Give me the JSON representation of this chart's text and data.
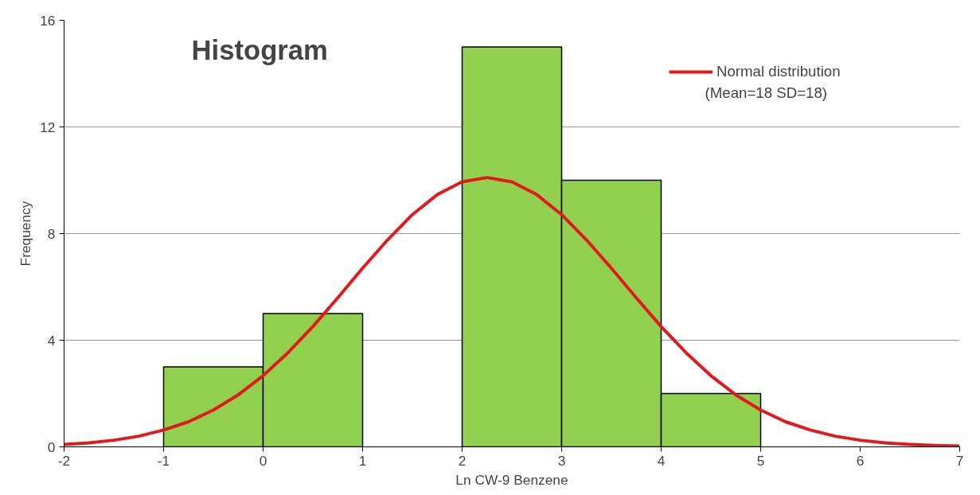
{
  "chart_data": {
    "type": "histogram",
    "title": "Histogram",
    "xlabel": "Ln CW-9 Benzene",
    "ylabel": "Frequency",
    "bins": [
      -1,
      0,
      1,
      2,
      3,
      4,
      5
    ],
    "values": [
      3,
      5,
      0,
      15,
      10,
      2
    ],
    "color": "#92d050",
    "series": [
      {
        "type": "line",
        "name": "Normal distribution",
        "color": "#e31a1c",
        "x": [
          -2,
          -1.75,
          -1.5,
          -1.25,
          -1,
          -0.75,
          -0.5,
          -0.25,
          0,
          0.25,
          0.5,
          0.75,
          1,
          1.25,
          1.5,
          1.75,
          2,
          2.25,
          2.5,
          2.75,
          3,
          3.25,
          3.5,
          3.75,
          4,
          4.25,
          4.5,
          4.75,
          5,
          5.25,
          5.5,
          5.75,
          6,
          6.25,
          6.5,
          6.75,
          7
        ],
        "values": [
          0.09,
          0.15,
          0.25,
          0.4,
          0.63,
          0.94,
          1.38,
          1.95,
          2.67,
          3.53,
          4.51,
          5.59,
          6.7,
          7.76,
          8.71,
          9.46,
          9.94,
          10.1,
          9.94,
          9.46,
          8.71,
          7.76,
          6.7,
          5.59,
          4.51,
          3.53,
          2.67,
          1.95,
          1.38,
          0.94,
          0.63,
          0.4,
          0.25,
          0.15,
          0.09,
          0.05,
          0.03
        ]
      }
    ],
    "annotations": [
      "(Mean=18  SD=18)"
    ],
    "xlim": [
      -2,
      7
    ],
    "xticks": [
      -2,
      -1,
      0,
      1,
      2,
      3,
      4,
      5,
      6,
      7
    ],
    "ylim": [
      0,
      16
    ],
    "yticks": [
      0,
      4,
      8,
      12,
      16
    ],
    "grid": "y",
    "legend": "top right",
    "line_style": "solid",
    "marker": "none"
  }
}
